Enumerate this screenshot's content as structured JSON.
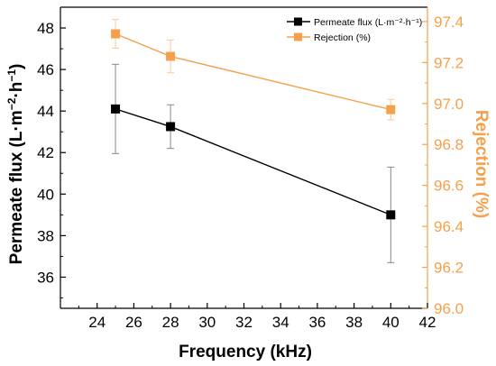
{
  "chart_data": {
    "type": "line",
    "xlabel": "Frequency (kHz)",
    "y_left_label_html": "Permeate flux (L·m⁻²·h⁻¹)",
    "y_right_label": "Rejection (%)",
    "xlim": [
      22,
      42
    ],
    "xticks": [
      24,
      26,
      28,
      30,
      32,
      34,
      36,
      38,
      40,
      42
    ],
    "ylim_left": [
      34.5,
      49
    ],
    "yticks_left": [
      36,
      38,
      40,
      42,
      44,
      46,
      48
    ],
    "ylim_right": [
      96.0,
      97.47
    ],
    "yticks_right": [
      "96.0",
      "96.2",
      "96.4",
      "96.6",
      "96.8",
      "97.0",
      "97.2",
      "97.4"
    ],
    "series": [
      {
        "name": "Permeate flux (L·m⁻²·h⁻¹)",
        "axis": "left",
        "color": "#000000",
        "marker": "square",
        "x": [
          25,
          28,
          40
        ],
        "y": [
          44.1,
          43.25,
          39.0
        ],
        "err": [
          2.15,
          1.05,
          2.3
        ]
      },
      {
        "name": "Rejection (%)",
        "axis": "right",
        "color": "#f5a04a",
        "marker": "square",
        "x": [
          25,
          28,
          40
        ],
        "y": [
          97.34,
          97.23,
          96.97
        ],
        "err": [
          0.07,
          0.08,
          0.05
        ]
      }
    ],
    "legend_position": "top-right",
    "grid": false
  },
  "colors": {
    "axis_left": "#000000",
    "axis_right": "#f5a04a"
  }
}
